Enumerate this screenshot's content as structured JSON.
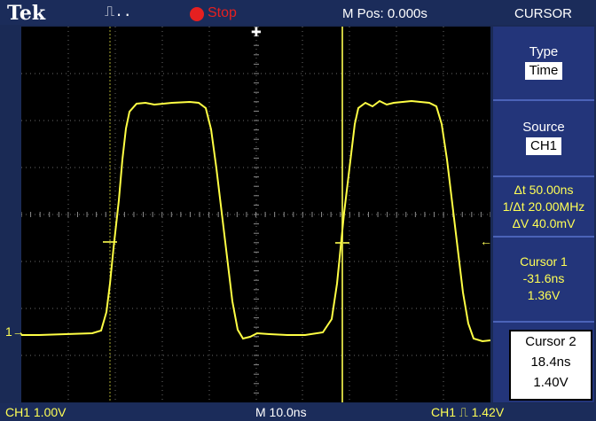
{
  "topbar": {
    "brand": "Tek",
    "trigger_mode": "⎍..",
    "run_state": "Stop",
    "m_pos": "M Pos: 0.000s",
    "menu_title": "CURSOR"
  },
  "side_menu": {
    "type_label": "Type",
    "type_value": "Time",
    "source_label": "Source",
    "source_value": "CH1",
    "delta_t": "Δt 50.00ns",
    "one_over_dt": "1/Δt 20.00MHz",
    "delta_v": "ΔV 40.0mV",
    "cursor1_title": "Cursor 1",
    "cursor1_time": "-31.6ns",
    "cursor1_volt": "1.36V",
    "cursor2_title": "Cursor 2",
    "cursor2_time": "18.4ns",
    "cursor2_volt": "1.40V"
  },
  "bottombar": {
    "ch1_scale": "CH1  1.00V",
    "timebase": "M 10.0ns",
    "trigger": "CH1 ⎍ 1.42V"
  },
  "markers": {
    "ch1_ground": "1→",
    "trigger_level_arrow": "←",
    "trigger_pos_arrow": "✚"
  },
  "colors": {
    "trace": "#ffff44",
    "screen_bg": "#000000",
    "frame": "#1a2a55",
    "menu": "#23357a",
    "stop": "#e62020"
  }
}
